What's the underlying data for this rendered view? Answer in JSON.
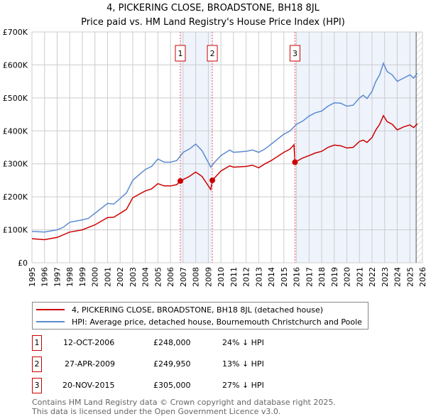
{
  "chart_data": {
    "type": "line",
    "title": "4, PICKERING CLOSE, BROADSTONE, BH18 8JL",
    "subtitle": "Price paid vs. HM Land Registry's House Price Index (HPI)",
    "xlim": [
      1995,
      2026
    ],
    "ylim": [
      0,
      700000
    ],
    "y_ticks": [
      {
        "v": 0,
        "label": "£0"
      },
      {
        "v": 100000,
        "label": "£100K"
      },
      {
        "v": 200000,
        "label": "£200K"
      },
      {
        "v": 300000,
        "label": "£300K"
      },
      {
        "v": 400000,
        "label": "£400K"
      },
      {
        "v": 500000,
        "label": "£500K"
      },
      {
        "v": 600000,
        "label": "£600K"
      },
      {
        "v": 700000,
        "label": "£700K"
      }
    ],
    "x_ticks": [
      "1995",
      "1996",
      "1997",
      "1998",
      "1999",
      "2000",
      "2001",
      "2002",
      "2003",
      "2004",
      "2005",
      "2006",
      "2007",
      "2008",
      "2009",
      "2010",
      "2011",
      "2012",
      "2013",
      "2014",
      "2015",
      "2016",
      "2017",
      "2018",
      "2019",
      "2020",
      "2021",
      "2022",
      "2023",
      "2024",
      "2025",
      "2026"
    ],
    "grid": true,
    "series": [
      {
        "name": "4, PICKERING CLOSE, BROADSTONE, BH18 8JL (detached house)",
        "color": "#cc0000",
        "points": [
          [
            1995,
            73
          ],
          [
            1996,
            70
          ],
          [
            1997,
            77
          ],
          [
            1998,
            93
          ],
          [
            1999,
            100
          ],
          [
            2000,
            115
          ],
          [
            2001,
            137
          ],
          [
            2001.5,
            138
          ],
          [
            2002,
            150
          ],
          [
            2002.5,
            162
          ],
          [
            2003,
            197
          ],
          [
            2004,
            218
          ],
          [
            2004.5,
            224
          ],
          [
            2005,
            240
          ],
          [
            2005.5,
            233
          ],
          [
            2006,
            233
          ],
          [
            2006.5,
            237
          ],
          [
            2006.78,
            248
          ],
          [
            2007.5,
            262
          ],
          [
            2008,
            275
          ],
          [
            2008.5,
            262
          ],
          [
            2009.2,
            222
          ],
          [
            2009.32,
            250
          ],
          [
            2010,
            278
          ],
          [
            2010.7,
            294
          ],
          [
            2011,
            290
          ],
          [
            2012,
            292
          ],
          [
            2012.5,
            296
          ],
          [
            2013,
            288
          ],
          [
            2013.5,
            300
          ],
          [
            2014,
            310
          ],
          [
            2015,
            335
          ],
          [
            2015.5,
            345
          ],
          [
            2015.8,
            358
          ],
          [
            2015.88,
            305
          ],
          [
            2016.5,
            318
          ],
          [
            2017,
            325
          ],
          [
            2017.5,
            333
          ],
          [
            2018,
            338
          ],
          [
            2018.5,
            350
          ],
          [
            2019,
            357
          ],
          [
            2019.5,
            355
          ],
          [
            2020,
            348
          ],
          [
            2020.5,
            350
          ],
          [
            2021,
            368
          ],
          [
            2021.3,
            372
          ],
          [
            2021.6,
            365
          ],
          [
            2022,
            380
          ],
          [
            2022.3,
            403
          ],
          [
            2022.6,
            420
          ],
          [
            2022.9,
            446
          ],
          [
            2023.2,
            428
          ],
          [
            2023.6,
            420
          ],
          [
            2024,
            403
          ],
          [
            2024.5,
            412
          ],
          [
            2025,
            418
          ],
          [
            2025.3,
            410
          ],
          [
            2025.6,
            422
          ]
        ]
      },
      {
        "name": "HPI: Average price, detached house, Bournemouth Christchurch and Poole",
        "color": "#5b8bd0",
        "points": [
          [
            1995,
            95
          ],
          [
            1996,
            93
          ],
          [
            1997,
            100
          ],
          [
            1997.5,
            108
          ],
          [
            1998,
            123
          ],
          [
            1999,
            130
          ],
          [
            1999.5,
            135
          ],
          [
            2000,
            150
          ],
          [
            2001,
            180
          ],
          [
            2001.5,
            178
          ],
          [
            2002,
            195
          ],
          [
            2002.5,
            212
          ],
          [
            2003,
            250
          ],
          [
            2004,
            283
          ],
          [
            2004.5,
            292
          ],
          [
            2005,
            315
          ],
          [
            2005.5,
            305
          ],
          [
            2006,
            305
          ],
          [
            2006.5,
            310
          ],
          [
            2007,
            335
          ],
          [
            2007.5,
            345
          ],
          [
            2008,
            360
          ],
          [
            2008.5,
            340
          ],
          [
            2009.2,
            290
          ],
          [
            2009.5,
            305
          ],
          [
            2010,
            325
          ],
          [
            2010.7,
            342
          ],
          [
            2011,
            335
          ],
          [
            2012,
            338
          ],
          [
            2012.5,
            342
          ],
          [
            2013,
            335
          ],
          [
            2013.5,
            345
          ],
          [
            2014,
            360
          ],
          [
            2015,
            390
          ],
          [
            2015.5,
            400
          ],
          [
            2016,
            420
          ],
          [
            2016.5,
            430
          ],
          [
            2017,
            445
          ],
          [
            2017.5,
            455
          ],
          [
            2018,
            460
          ],
          [
            2018.5,
            475
          ],
          [
            2019,
            485
          ],
          [
            2019.5,
            484
          ],
          [
            2020,
            475
          ],
          [
            2020.5,
            478
          ],
          [
            2021,
            500
          ],
          [
            2021.3,
            508
          ],
          [
            2021.6,
            498
          ],
          [
            2022,
            520
          ],
          [
            2022.3,
            550
          ],
          [
            2022.6,
            570
          ],
          [
            2022.9,
            605
          ],
          [
            2023.2,
            580
          ],
          [
            2023.6,
            570
          ],
          [
            2024,
            550
          ],
          [
            2024.5,
            560
          ],
          [
            2025,
            570
          ],
          [
            2025.3,
            560
          ],
          [
            2025.6,
            575
          ]
        ]
      }
    ],
    "y_units": "thousands GBP",
    "sales": [
      {
        "num": "1",
        "x": 2006.78,
        "y": 248,
        "date": "12-OCT-2006",
        "price": "£248,000",
        "hpi": "24% ↓ HPI"
      },
      {
        "num": "2",
        "x": 2009.32,
        "y": 249.95,
        "date": "27-APR-2009",
        "price": "£249,950",
        "hpi": "13% ↓ HPI"
      },
      {
        "num": "3",
        "x": 2015.88,
        "y": 305,
        "date": "20-NOV-2015",
        "price": "£305,000",
        "hpi": "27% ↓ HPI"
      }
    ],
    "data_end": 2025.5
  },
  "footer": [
    "Contains HM Land Registry data © Crown copyright and database right 2025.",
    "This data is licensed under the Open Government Licence v3.0."
  ]
}
